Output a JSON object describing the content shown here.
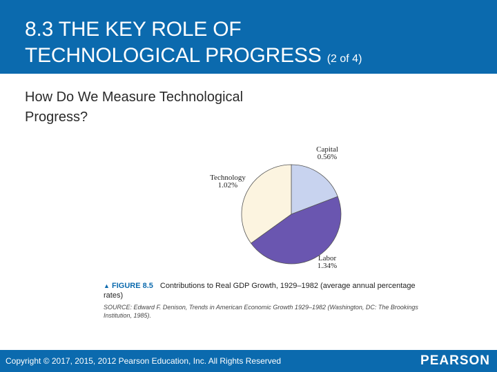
{
  "slide": {
    "title_line1": "8.3 THE KEY ROLE OF",
    "title_line2": "TECHNOLOGICAL PROGRESS",
    "title_part": "(2 of 4)",
    "subtitle": "How Do We Measure Technological Progress?"
  },
  "figure": {
    "marker": "▲",
    "label": "FIGURE 8.5",
    "caption": "Contributions to Real GDP Growth, 1929–1982 (average annual percentage rates)",
    "source": "SOURCE: Edward F. Denison, Trends in American Economic Growth 1929–1982 (Washington, DC: The Brookings Institution, 1985)."
  },
  "chart_data": {
    "type": "pie",
    "title": "Contributions to Real GDP Growth, 1929–1982 (average annual percentage rates)",
    "slices": [
      {
        "name": "Capital",
        "value": 0.56,
        "display": "0.56%",
        "color": "#c8d3ef"
      },
      {
        "name": "Labor",
        "value": 1.34,
        "display": "1.34%",
        "color": "#6a56b0"
      },
      {
        "name": "Technology",
        "value": 1.02,
        "display": "1.02%",
        "color": "#fcf4e0"
      }
    ]
  },
  "footer": {
    "copyright": "Copyright © 2017, 2015, 2012 Pearson Education, Inc. All Rights Reserved",
    "brand": "PEARSON"
  },
  "colors": {
    "header": "#0b6aae",
    "footer": "#0b6aae"
  }
}
